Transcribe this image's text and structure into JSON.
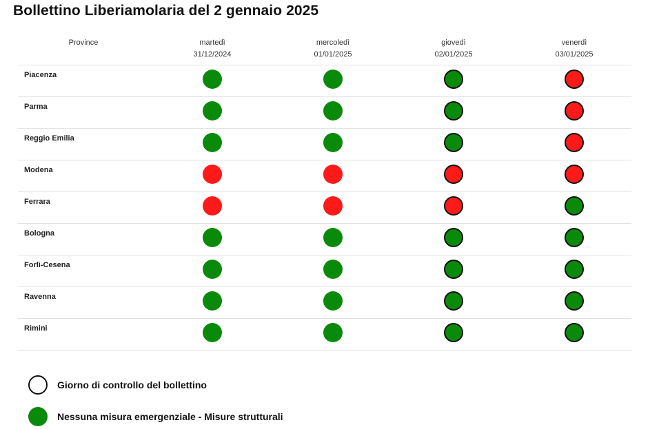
{
  "title": "Bollettino Liberiamolaria del 2 gennaio 2025",
  "colors": {
    "green": "#0a8a0a",
    "red": "#ff1a1a",
    "outline": "#111111"
  },
  "table": {
    "province_header": "Province",
    "days": [
      {
        "weekday": "martedì",
        "date": "31/12/2024",
        "control_day": false
      },
      {
        "weekday": "mercoledì",
        "date": "01/01/2025",
        "control_day": false
      },
      {
        "weekday": "giovedì",
        "date": "02/01/2025",
        "control_day": true
      },
      {
        "weekday": "venerdì",
        "date": "03/01/2025",
        "control_day": true
      }
    ],
    "rows": [
      {
        "province": "Piacenza",
        "status": [
          "green",
          "green",
          "green",
          "red"
        ]
      },
      {
        "province": "Parma",
        "status": [
          "green",
          "green",
          "green",
          "red"
        ]
      },
      {
        "province": "Reggio Emilia",
        "status": [
          "green",
          "green",
          "green",
          "red"
        ]
      },
      {
        "province": "Modena",
        "status": [
          "red",
          "red",
          "red",
          "red"
        ]
      },
      {
        "province": "Ferrara",
        "status": [
          "red",
          "red",
          "red",
          "green"
        ]
      },
      {
        "province": "Bologna",
        "status": [
          "green",
          "green",
          "green",
          "green"
        ]
      },
      {
        "province": "Forlì-Cesena",
        "status": [
          "green",
          "green",
          "green",
          "green"
        ]
      },
      {
        "province": "Ravenna",
        "status": [
          "green",
          "green",
          "green",
          "green"
        ]
      },
      {
        "province": "Rimini",
        "status": [
          "green",
          "green",
          "green",
          "green"
        ]
      }
    ]
  },
  "legend": [
    {
      "label": "Giorno di controllo del bollettino",
      "kind": "outline"
    },
    {
      "label": "Nessuna misura emergenziale - Misure strutturali",
      "kind": "green"
    }
  ]
}
